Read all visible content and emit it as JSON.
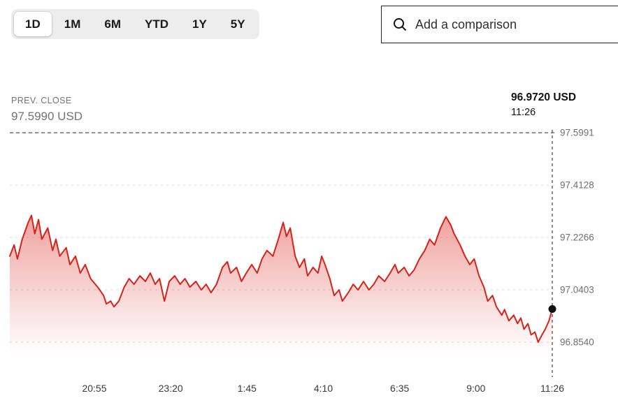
{
  "tabs": {
    "items": [
      {
        "label": "1D",
        "selected": true
      },
      {
        "label": "1M",
        "selected": false
      },
      {
        "label": "6M",
        "selected": false
      },
      {
        "label": "YTD",
        "selected": false
      },
      {
        "label": "1Y",
        "selected": false
      },
      {
        "label": "5Y",
        "selected": false
      }
    ]
  },
  "comparison": {
    "placeholder": "Add a comparison",
    "icon": "search-icon"
  },
  "annotations": {
    "prev_close_title": "PREV. CLOSE",
    "prev_close_value": "97.5990 USD",
    "last_price": "96.9720 USD",
    "last_time": "11:26"
  },
  "chart_data": {
    "type": "line",
    "title": "",
    "xlabel": "",
    "ylabel": "",
    "legend": "none",
    "grid": true,
    "line_color": "#da2118",
    "marker_color": "#111111",
    "prev_close": 97.599,
    "last_value": 96.972,
    "last_time": "11:26",
    "ylim": [
      96.854,
      97.5991
    ],
    "y_ticks": [
      97.5991,
      97.4128,
      97.2266,
      97.0403,
      96.854
    ],
    "x_ticks": [
      "20:55",
      "23:20",
      "1:45",
      "4:10",
      "6:35",
      "9:00",
      "11:26"
    ],
    "points": [
      [
        0.0,
        97.16
      ],
      [
        0.008,
        97.2
      ],
      [
        0.014,
        97.15
      ],
      [
        0.023,
        97.22
      ],
      [
        0.034,
        97.28
      ],
      [
        0.04,
        97.305
      ],
      [
        0.046,
        97.24
      ],
      [
        0.053,
        97.29
      ],
      [
        0.059,
        97.22
      ],
      [
        0.07,
        97.26
      ],
      [
        0.079,
        97.18
      ],
      [
        0.085,
        97.22
      ],
      [
        0.092,
        97.16
      ],
      [
        0.104,
        97.19
      ],
      [
        0.111,
        97.13
      ],
      [
        0.121,
        97.16
      ],
      [
        0.13,
        97.1
      ],
      [
        0.139,
        97.13
      ],
      [
        0.149,
        97.08
      ],
      [
        0.162,
        97.05
      ],
      [
        0.173,
        97.02
      ],
      [
        0.178,
        96.99
      ],
      [
        0.186,
        97.0
      ],
      [
        0.192,
        96.98
      ],
      [
        0.201,
        97.0
      ],
      [
        0.211,
        97.05
      ],
      [
        0.22,
        97.08
      ],
      [
        0.229,
        97.06
      ],
      [
        0.24,
        97.09
      ],
      [
        0.25,
        97.07
      ],
      [
        0.259,
        97.1
      ],
      [
        0.268,
        97.06
      ],
      [
        0.276,
        97.08
      ],
      [
        0.285,
        97.0
      ],
      [
        0.294,
        97.07
      ],
      [
        0.304,
        97.09
      ],
      [
        0.314,
        97.06
      ],
      [
        0.323,
        97.08
      ],
      [
        0.332,
        97.05
      ],
      [
        0.343,
        97.07
      ],
      [
        0.353,
        97.04
      ],
      [
        0.362,
        97.06
      ],
      [
        0.371,
        97.03
      ],
      [
        0.381,
        97.06
      ],
      [
        0.392,
        97.12
      ],
      [
        0.401,
        97.14
      ],
      [
        0.407,
        97.1
      ],
      [
        0.418,
        97.12
      ],
      [
        0.427,
        97.07
      ],
      [
        0.436,
        97.1
      ],
      [
        0.446,
        97.13
      ],
      [
        0.456,
        97.1
      ],
      [
        0.465,
        97.15
      ],
      [
        0.474,
        97.18
      ],
      [
        0.485,
        97.16
      ],
      [
        0.495,
        97.22
      ],
      [
        0.504,
        97.28
      ],
      [
        0.51,
        97.23
      ],
      [
        0.517,
        97.26
      ],
      [
        0.526,
        97.16
      ],
      [
        0.534,
        97.12
      ],
      [
        0.543,
        97.15
      ],
      [
        0.549,
        97.09
      ],
      [
        0.559,
        97.12
      ],
      [
        0.568,
        97.1
      ],
      [
        0.575,
        97.16
      ],
      [
        0.581,
        97.13
      ],
      [
        0.59,
        97.08
      ],
      [
        0.598,
        97.02
      ],
      [
        0.607,
        97.04
      ],
      [
        0.613,
        97.0
      ],
      [
        0.624,
        97.03
      ],
      [
        0.633,
        97.06
      ],
      [
        0.642,
        97.04
      ],
      [
        0.652,
        97.07
      ],
      [
        0.662,
        97.04
      ],
      [
        0.671,
        97.06
      ],
      [
        0.68,
        97.09
      ],
      [
        0.691,
        97.07
      ],
      [
        0.701,
        97.1
      ],
      [
        0.71,
        97.13
      ],
      [
        0.716,
        97.1
      ],
      [
        0.727,
        97.12
      ],
      [
        0.736,
        97.09
      ],
      [
        0.745,
        97.11
      ],
      [
        0.755,
        97.15
      ],
      [
        0.765,
        97.18
      ],
      [
        0.774,
        97.22
      ],
      [
        0.783,
        97.2
      ],
      [
        0.794,
        97.26
      ],
      [
        0.804,
        97.3
      ],
      [
        0.813,
        97.27
      ],
      [
        0.819,
        97.24
      ],
      [
        0.83,
        97.2
      ],
      [
        0.839,
        97.16
      ],
      [
        0.848,
        97.13
      ],
      [
        0.856,
        97.15
      ],
      [
        0.865,
        97.09
      ],
      [
        0.874,
        97.05
      ],
      [
        0.881,
        97.0
      ],
      [
        0.89,
        97.02
      ],
      [
        0.897,
        96.98
      ],
      [
        0.907,
        96.95
      ],
      [
        0.912,
        96.97
      ],
      [
        0.92,
        96.93
      ],
      [
        0.929,
        96.95
      ],
      [
        0.936,
        96.92
      ],
      [
        0.942,
        96.94
      ],
      [
        0.948,
        96.9
      ],
      [
        0.955,
        96.92
      ],
      [
        0.961,
        96.88
      ],
      [
        0.968,
        96.89
      ],
      [
        0.974,
        96.854
      ],
      [
        0.981,
        96.88
      ],
      [
        0.987,
        96.9
      ],
      [
        0.994,
        96.93
      ],
      [
        1.0,
        96.972
      ]
    ]
  }
}
